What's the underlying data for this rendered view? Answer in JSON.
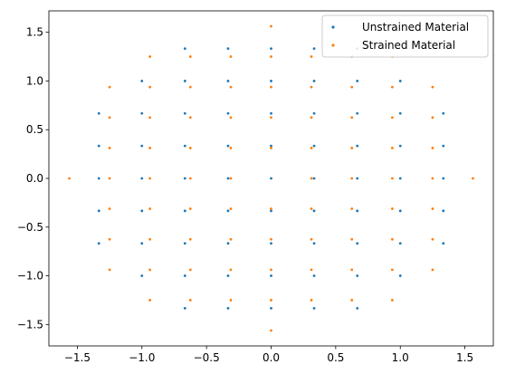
{
  "chart_data": {
    "type": "scatter",
    "xlim": [
      -1.72,
      1.72
    ],
    "ylim": [
      -1.72,
      1.72
    ],
    "xticks": [
      -1.5,
      -1.0,
      -0.5,
      0.0,
      0.5,
      1.0,
      1.5
    ],
    "xtick_labels": [
      "−1.5",
      "−1.0",
      "−0.5",
      "0.0",
      "0.5",
      "1.0",
      "1.5"
    ],
    "yticks": [
      -1.5,
      -1.0,
      -0.5,
      0.0,
      0.5,
      1.0,
      1.5
    ],
    "ytick_labels": [
      "−1.5",
      "−1.0",
      "−0.5",
      "0.0",
      "0.5",
      "1.0",
      "1.5"
    ],
    "grid": false,
    "legend": {
      "placement": "top-right"
    },
    "series": [
      {
        "name": "Unstrained Material",
        "color": "#1f77b4",
        "points": [
          [
            -0.667,
            1.333
          ],
          [
            -0.333,
            1.333
          ],
          [
            0,
            1.333
          ],
          [
            0.333,
            1.333
          ],
          [
            0.667,
            1.333
          ],
          [
            -1,
            1
          ],
          [
            -0.667,
            1
          ],
          [
            -0.333,
            1
          ],
          [
            0,
            1
          ],
          [
            0.333,
            1
          ],
          [
            0.667,
            1
          ],
          [
            1,
            1
          ],
          [
            -1.333,
            0.667
          ],
          [
            -1,
            0.667
          ],
          [
            -0.667,
            0.667
          ],
          [
            -0.333,
            0.667
          ],
          [
            0,
            0.667
          ],
          [
            0.333,
            0.667
          ],
          [
            0.667,
            0.667
          ],
          [
            1,
            0.667
          ],
          [
            1.333,
            0.667
          ],
          [
            -1.333,
            0.333
          ],
          [
            -1,
            0.333
          ],
          [
            -0.667,
            0.333
          ],
          [
            -0.333,
            0.333
          ],
          [
            0,
            0.333
          ],
          [
            0.333,
            0.333
          ],
          [
            0.667,
            0.333
          ],
          [
            1,
            0.333
          ],
          [
            1.333,
            0.333
          ],
          [
            -1.333,
            0
          ],
          [
            -1,
            0
          ],
          [
            -0.667,
            0
          ],
          [
            -0.333,
            0
          ],
          [
            0,
            0
          ],
          [
            0.333,
            0
          ],
          [
            0.667,
            0
          ],
          [
            1,
            0
          ],
          [
            1.333,
            0
          ],
          [
            -1.333,
            -0.333
          ],
          [
            -1,
            -0.333
          ],
          [
            -0.667,
            -0.333
          ],
          [
            -0.333,
            -0.333
          ],
          [
            0,
            -0.333
          ],
          [
            0.333,
            -0.333
          ],
          [
            0.667,
            -0.333
          ],
          [
            1,
            -0.333
          ],
          [
            1.333,
            -0.333
          ],
          [
            -1.333,
            -0.667
          ],
          [
            -1,
            -0.667
          ],
          [
            -0.667,
            -0.667
          ],
          [
            -0.333,
            -0.667
          ],
          [
            0,
            -0.667
          ],
          [
            0.333,
            -0.667
          ],
          [
            0.667,
            -0.667
          ],
          [
            1,
            -0.667
          ],
          [
            1.333,
            -0.667
          ],
          [
            -1,
            -1
          ],
          [
            -0.667,
            -1
          ],
          [
            -0.333,
            -1
          ],
          [
            0,
            -1
          ],
          [
            0.333,
            -1
          ],
          [
            0.667,
            -1
          ],
          [
            1,
            -1
          ],
          [
            -0.667,
            -1.333
          ],
          [
            -0.333,
            -1.333
          ],
          [
            0,
            -1.333
          ],
          [
            0.333,
            -1.333
          ],
          [
            0.667,
            -1.333
          ]
        ]
      },
      {
        "name": "Strained Material",
        "color": "#ff7f0e",
        "points": [
          [
            0,
            1.562
          ],
          [
            -0.938,
            1.25
          ],
          [
            -0.625,
            1.25
          ],
          [
            -0.312,
            1.25
          ],
          [
            0,
            1.25
          ],
          [
            0.312,
            1.25
          ],
          [
            0.625,
            1.25
          ],
          [
            0.938,
            1.25
          ],
          [
            -1.25,
            0.938
          ],
          [
            -0.938,
            0.938
          ],
          [
            -0.625,
            0.938
          ],
          [
            -0.312,
            0.938
          ],
          [
            0,
            0.938
          ],
          [
            0.312,
            0.938
          ],
          [
            0.625,
            0.938
          ],
          [
            0.938,
            0.938
          ],
          [
            1.25,
            0.938
          ],
          [
            -1.25,
            0.625
          ],
          [
            -0.938,
            0.625
          ],
          [
            -0.625,
            0.625
          ],
          [
            -0.312,
            0.625
          ],
          [
            0,
            0.625
          ],
          [
            0.312,
            0.625
          ],
          [
            0.625,
            0.625
          ],
          [
            0.938,
            0.625
          ],
          [
            1.25,
            0.625
          ],
          [
            -1.25,
            0.312
          ],
          [
            -0.938,
            0.312
          ],
          [
            -0.625,
            0.312
          ],
          [
            -0.312,
            0.312
          ],
          [
            0,
            0.312
          ],
          [
            0.312,
            0.312
          ],
          [
            0.625,
            0.312
          ],
          [
            0.938,
            0.312
          ],
          [
            1.25,
            0.312
          ],
          [
            -1.562,
            0
          ],
          [
            -1.25,
            0
          ],
          [
            -0.938,
            0
          ],
          [
            -0.625,
            0
          ],
          [
            -0.312,
            0
          ],
          [
            0.312,
            0
          ],
          [
            0.625,
            0
          ],
          [
            0.938,
            0
          ],
          [
            1.25,
            0
          ],
          [
            1.562,
            0
          ],
          [
            -1.25,
            -0.312
          ],
          [
            -0.938,
            -0.312
          ],
          [
            -0.625,
            -0.312
          ],
          [
            -0.312,
            -0.312
          ],
          [
            0,
            -0.312
          ],
          [
            0.312,
            -0.312
          ],
          [
            0.625,
            -0.312
          ],
          [
            0.938,
            -0.312
          ],
          [
            1.25,
            -0.312
          ],
          [
            -1.25,
            -0.625
          ],
          [
            -0.938,
            -0.625
          ],
          [
            -0.625,
            -0.625
          ],
          [
            -0.312,
            -0.625
          ],
          [
            0,
            -0.625
          ],
          [
            0.312,
            -0.625
          ],
          [
            0.625,
            -0.625
          ],
          [
            0.938,
            -0.625
          ],
          [
            1.25,
            -0.625
          ],
          [
            -1.25,
            -0.938
          ],
          [
            -0.938,
            -0.938
          ],
          [
            -0.625,
            -0.938
          ],
          [
            -0.312,
            -0.938
          ],
          [
            0,
            -0.938
          ],
          [
            0.312,
            -0.938
          ],
          [
            0.625,
            -0.938
          ],
          [
            0.938,
            -0.938
          ],
          [
            1.25,
            -0.938
          ],
          [
            -0.938,
            -1.25
          ],
          [
            -0.625,
            -1.25
          ],
          [
            -0.312,
            -1.25
          ],
          [
            0,
            -1.25
          ],
          [
            0.312,
            -1.25
          ],
          [
            0.625,
            -1.25
          ],
          [
            0.938,
            -1.25
          ],
          [
            0,
            -1.562
          ]
        ]
      }
    ]
  }
}
